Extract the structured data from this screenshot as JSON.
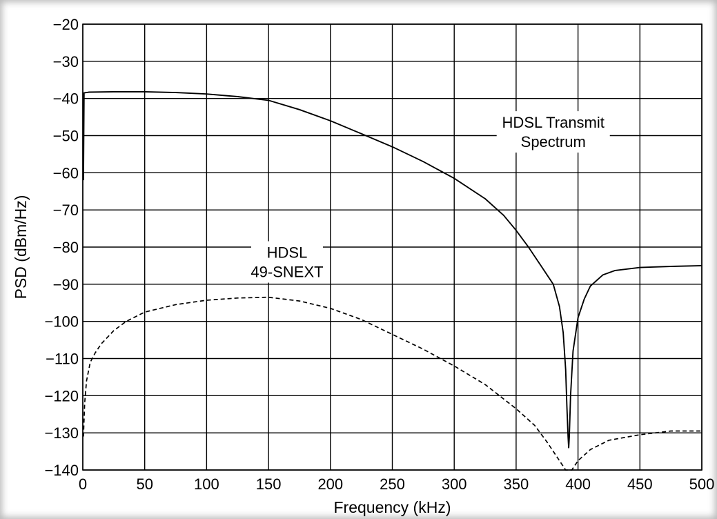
{
  "chart_data": {
    "type": "line",
    "title": "",
    "xlabel": "Frequency (kHz)",
    "ylabel": "PSD (dBm/Hz)",
    "xlim": [
      0,
      500
    ],
    "ylim": [
      -140,
      -20
    ],
    "xticks": [
      "0",
      "50",
      "100",
      "150",
      "200",
      "250",
      "300",
      "350",
      "400",
      "450",
      "500"
    ],
    "yticks": [
      "−20",
      "−30",
      "−40",
      "−50",
      "−60",
      "−70",
      "−80",
      "−90",
      "−100",
      "−110",
      "−120",
      "−130",
      "−140"
    ],
    "grid": true,
    "annotations": [
      {
        "lines": [
          "HDSL Transmit",
          "Spectrum"
        ],
        "x": 380,
        "y": -49
      },
      {
        "lines": [
          "HDSL",
          "49-SNEXT"
        ],
        "x": 165,
        "y": -84
      }
    ],
    "series": [
      {
        "style": "solid",
        "color": "#000000",
        "points": [
          [
            0.5,
            -62
          ],
          [
            1,
            -38.5
          ],
          [
            5,
            -38.3
          ],
          [
            25,
            -38.2
          ],
          [
            50,
            -38.2
          ],
          [
            75,
            -38.4
          ],
          [
            100,
            -38.8
          ],
          [
            125,
            -39.5
          ],
          [
            150,
            -40.5
          ],
          [
            175,
            -43
          ],
          [
            200,
            -46
          ],
          [
            225,
            -49.5
          ],
          [
            250,
            -53
          ],
          [
            275,
            -57
          ],
          [
            300,
            -61.5
          ],
          [
            325,
            -67
          ],
          [
            340,
            -71.5
          ],
          [
            350,
            -75.5
          ],
          [
            360,
            -80
          ],
          [
            370,
            -85
          ],
          [
            380,
            -90
          ],
          [
            385,
            -96
          ],
          [
            388,
            -103
          ],
          [
            390,
            -113
          ],
          [
            391,
            -123
          ],
          [
            392,
            -131
          ],
          [
            392.5,
            -134
          ],
          [
            393,
            -131
          ],
          [
            394,
            -120
          ],
          [
            396,
            -108
          ],
          [
            400,
            -99
          ],
          [
            405,
            -94
          ],
          [
            410,
            -90.5
          ],
          [
            420,
            -87.5
          ],
          [
            430,
            -86.3
          ],
          [
            450,
            -85.5
          ],
          [
            475,
            -85.2
          ],
          [
            500,
            -85
          ]
        ]
      },
      {
        "style": "dashed",
        "color": "#000000",
        "points": [
          [
            0.5,
            -131
          ],
          [
            1.5,
            -122
          ],
          [
            3,
            -116
          ],
          [
            6,
            -111
          ],
          [
            10,
            -108.5
          ],
          [
            15,
            -106
          ],
          [
            25,
            -102.5
          ],
          [
            35,
            -100
          ],
          [
            50,
            -97.5
          ],
          [
            75,
            -95.5
          ],
          [
            100,
            -94.3
          ],
          [
            125,
            -93.7
          ],
          [
            150,
            -93.5
          ],
          [
            175,
            -94.5
          ],
          [
            200,
            -96.5
          ],
          [
            225,
            -99.5
          ],
          [
            250,
            -103.5
          ],
          [
            275,
            -107.5
          ],
          [
            300,
            -112
          ],
          [
            325,
            -117
          ],
          [
            350,
            -123.5
          ],
          [
            365,
            -128
          ],
          [
            375,
            -132.5
          ],
          [
            385,
            -137.5
          ],
          [
            390,
            -140
          ],
          [
            395,
            -140
          ],
          [
            400,
            -137.5
          ],
          [
            410,
            -134.5
          ],
          [
            425,
            -132
          ],
          [
            450,
            -130.5
          ],
          [
            475,
            -129.5
          ],
          [
            500,
            -129.5
          ]
        ]
      }
    ]
  }
}
